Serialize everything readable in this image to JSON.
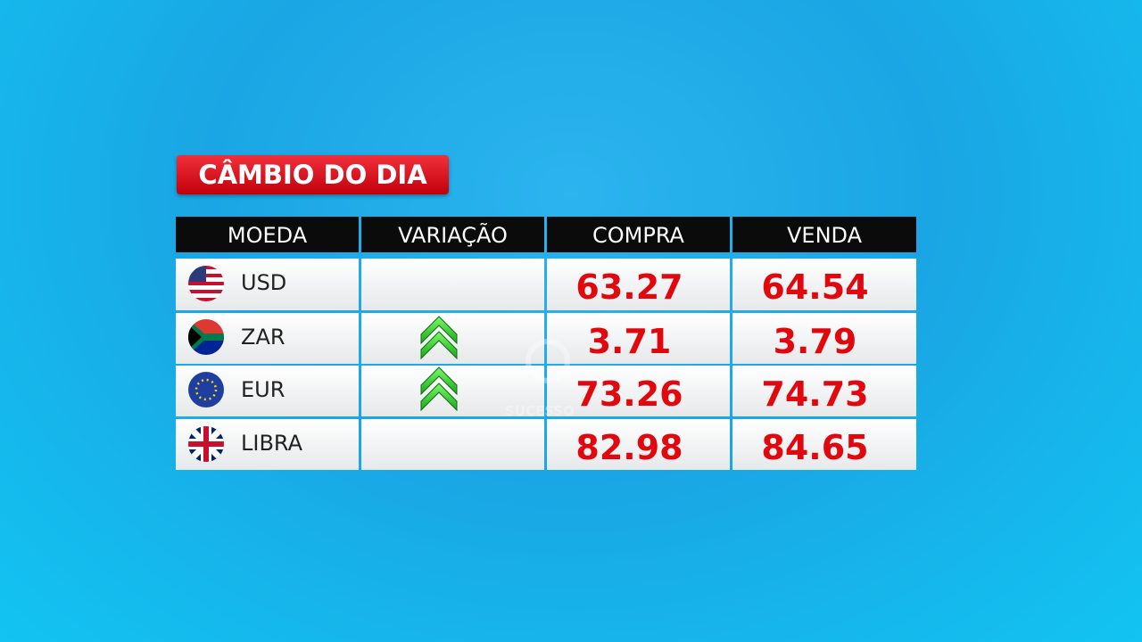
{
  "title": "CÂMBIO DO DIA",
  "table": {
    "headers": [
      "MOEDA",
      "VARIAÇÃO",
      "COMPRA",
      "VENDA"
    ],
    "rows": [
      [
        "USD",
        "63.27",
        "64.54"
      ],
      [
        "ZAR",
        "3.71",
        "3.79"
      ],
      [
        "EUR",
        "73.26",
        "74.73"
      ],
      [
        "LIBRA",
        "82.98",
        "84.65"
      ]
    ]
  },
  "watermark": "SUCESSO"
}
